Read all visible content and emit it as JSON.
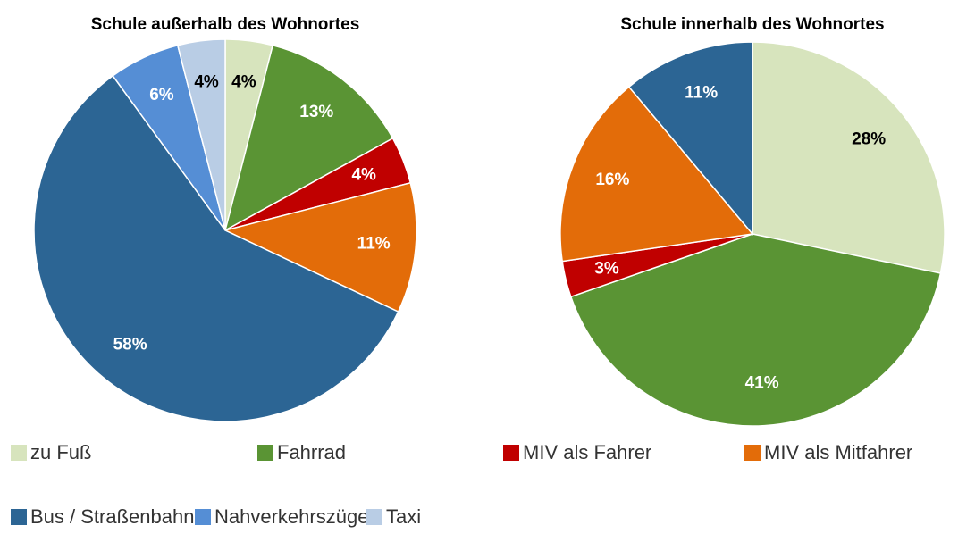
{
  "chart_data": [
    {
      "type": "pie",
      "title": "Schule außerhalb des Wohnortes",
      "categories": [
        "zu Fuß",
        "Fahrrad",
        "MIV als Fahrer",
        "MIV als Mitfahrer",
        "Bus / Straßenbahn",
        "Nahverkehrszüge",
        "Taxi"
      ],
      "values": [
        4,
        13,
        4,
        11,
        58,
        6,
        4
      ],
      "value_labels": [
        "4%",
        "13%",
        "4%",
        "11%",
        "58%",
        "6%",
        "4%"
      ],
      "colors": [
        "#d7e4bd",
        "#5a9434",
        "#c00000",
        "#e36c09",
        "#2c6594",
        "#558ed5",
        "#b9cde5"
      ]
    },
    {
      "type": "pie",
      "title": "Schule innerhalb des Wohnortes",
      "categories": [
        "zu Fuß",
        "Fahrrad",
        "MIV als Fahrer",
        "MIV als Mitfahrer",
        "Bus / Straßenbahn"
      ],
      "values": [
        28,
        41,
        3,
        16,
        11
      ],
      "value_labels": [
        "28%",
        "41%",
        "3%",
        "16%",
        "11%"
      ],
      "colors": [
        "#d7e4bd",
        "#5a9434",
        "#c00000",
        "#e36c09",
        "#2c6594"
      ]
    }
  ]
}
